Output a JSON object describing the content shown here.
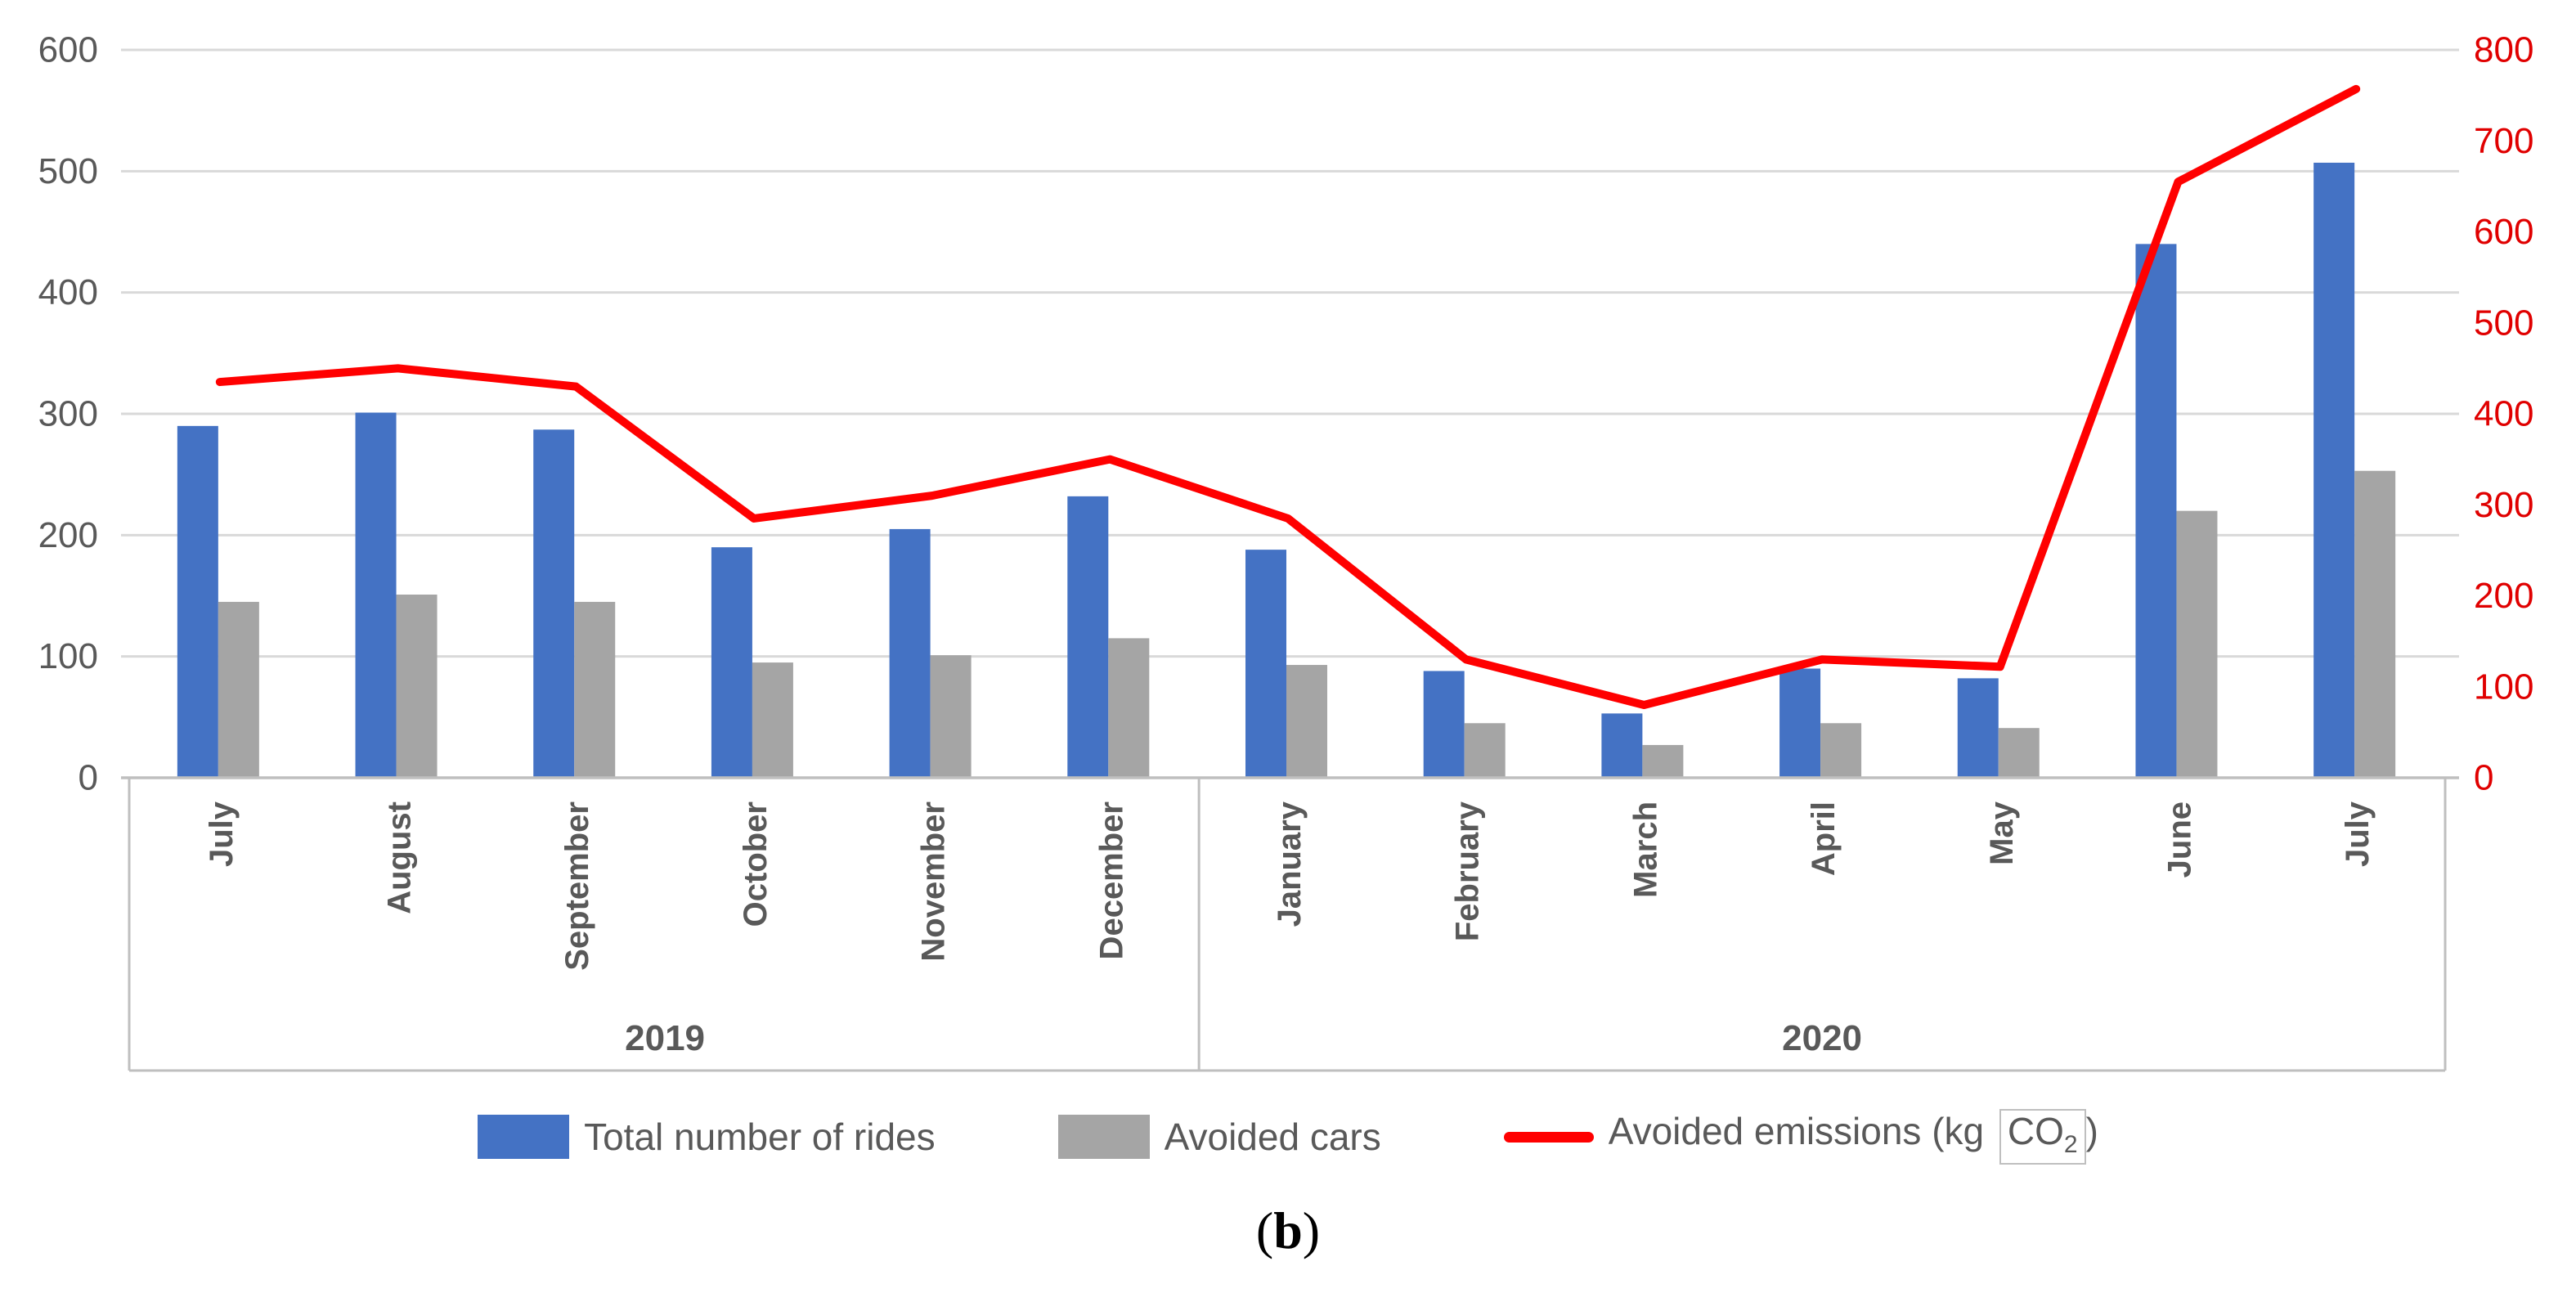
{
  "figure": {
    "caption_open": "(",
    "caption_letter": "b",
    "caption_close": ")"
  },
  "legend": {
    "rides_label": "Total number of rides",
    "cars_label": "Avoided cars",
    "emissions_prefix": "Avoided emissions (kg",
    "co2_main": "CO",
    "co2_sub": "2",
    "emissions_suffix": ")"
  },
  "chart_data": {
    "type": "bar+line combo",
    "title": "",
    "xlabel": "",
    "ylabel_left": "",
    "ylabel_right": "",
    "categories": [
      "July",
      "August",
      "September",
      "October",
      "November",
      "December",
      "January",
      "February",
      "March",
      "April",
      "May",
      "June",
      "July"
    ],
    "year_groups": [
      {
        "label": "2019",
        "count": 6
      },
      {
        "label": "2020",
        "count": 7
      }
    ],
    "series": [
      {
        "name": "Total number of rides",
        "type": "bar",
        "axis": "left",
        "color": "#4472C4",
        "values": [
          290,
          301,
          287,
          190,
          205,
          232,
          188,
          88,
          53,
          90,
          82,
          440,
          507
        ]
      },
      {
        "name": "Avoided cars",
        "type": "bar",
        "axis": "left",
        "color": "#A5A5A5",
        "values": [
          145,
          151,
          145,
          95,
          101,
          115,
          93,
          45,
          27,
          45,
          41,
          220,
          253
        ]
      },
      {
        "name": "Avoided emissions (kg CO2)",
        "type": "line",
        "axis": "right",
        "color": "#FF0000",
        "values": [
          435,
          450,
          430,
          285,
          310,
          350,
          285,
          130,
          80,
          130,
          122,
          655,
          757
        ]
      }
    ],
    "left_axis": {
      "min": 0,
      "max": 600,
      "step": 100,
      "ticks": [
        "0",
        "100",
        "200",
        "300",
        "400",
        "500",
        "600"
      ],
      "label_color": "#595959"
    },
    "right_axis": {
      "min": 0,
      "max": 800,
      "step": 100,
      "ticks": [
        "0",
        "100",
        "200",
        "300",
        "400",
        "500",
        "600",
        "700",
        "800"
      ],
      "label_color": "#E00000"
    },
    "grid": true,
    "gridline_color": "#D9D9D9",
    "axis_line_color": "#BFBFBF",
    "category_text_color": "#595959",
    "legend_position": "bottom"
  }
}
